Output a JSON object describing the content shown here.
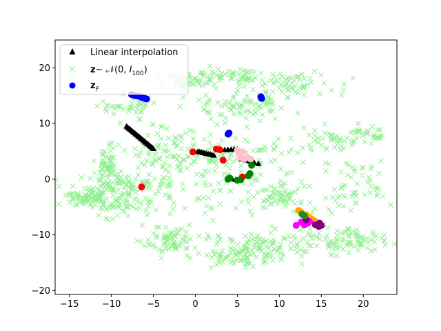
{
  "chart_data": {
    "type": "scatter",
    "title": "",
    "xlabel": "",
    "ylabel": "",
    "xlim": [
      -16.7,
      24.0
    ],
    "ylim": [
      -20.7,
      25.0
    ],
    "xticks": [
      -15,
      -10,
      -5,
      0,
      5,
      10,
      15,
      20
    ],
    "yticks": [
      -20,
      -10,
      0,
      10,
      20
    ],
    "grid": false,
    "legend_position": "top-left",
    "legend": [
      {
        "label": "Linear interpolation",
        "marker": "triangle",
        "color": "#000000"
      },
      {
        "label_prefix": "z",
        "label_rest": "∼ 𝒩(0, ",
        "label_I": "I",
        "label_sub": "100",
        "label_close": ")",
        "marker": "x",
        "color": "#90ee90"
      },
      {
        "label_prefix": "z",
        "label_sub": "F",
        "marker": "circle",
        "color": "#0000ff"
      }
    ],
    "background_clusters": [
      {
        "cx": -12.5,
        "cy": -3.0,
        "sx": 2.0,
        "sy": 1.0,
        "n": 90
      },
      {
        "cx": -10.5,
        "cy": 2.5,
        "sx": 0.7,
        "sy": 2.0,
        "n": 60
      },
      {
        "cx": -7.5,
        "cy": -1.0,
        "sx": 2.5,
        "sy": 1.0,
        "n": 80
      },
      {
        "cx": -9.0,
        "cy": -5.0,
        "sx": 2.0,
        "sy": 1.0,
        "n": 50
      },
      {
        "cx": -3.0,
        "cy": -11.0,
        "sx": 1.8,
        "sy": 1.2,
        "n": 70
      },
      {
        "cx": -1.0,
        "cy": 17.5,
        "sx": 2.0,
        "sy": 0.7,
        "n": 50
      },
      {
        "cx": 5.0,
        "cy": 18.5,
        "sx": 2.5,
        "sy": 0.8,
        "n": 60
      },
      {
        "cx": 5.5,
        "cy": 13.0,
        "sx": 3.0,
        "sy": 1.5,
        "n": 80
      },
      {
        "cx": 12.0,
        "cy": 17.0,
        "sx": 2.5,
        "sy": 1.2,
        "n": 60
      },
      {
        "cx": 20.5,
        "cy": 8.0,
        "sx": 1.2,
        "sy": 0.7,
        "n": 30
      },
      {
        "cx": 16.0,
        "cy": 7.5,
        "sx": 2.0,
        "sy": 1.0,
        "n": 40
      },
      {
        "cx": 17.5,
        "cy": -11.0,
        "sx": 2.5,
        "sy": 1.3,
        "n": 90
      },
      {
        "cx": 8.0,
        "cy": -12.0,
        "sx": 3.0,
        "sy": 1.2,
        "n": 90
      },
      {
        "cx": 5.0,
        "cy": -14.0,
        "sx": 2.5,
        "sy": 0.8,
        "n": 60
      },
      {
        "cx": 10.0,
        "cy": -3.0,
        "sx": 1.5,
        "sy": 1.5,
        "n": 50
      },
      {
        "cx": 19.0,
        "cy": -2.0,
        "sx": 2.0,
        "sy": 2.5,
        "n": 50
      },
      {
        "cx": 3.0,
        "cy": 5.0,
        "sx": 3.0,
        "sy": 1.5,
        "n": 70
      },
      {
        "cx": -4.0,
        "cy": 5.0,
        "sx": 2.0,
        "sy": 2.5,
        "n": 50
      },
      {
        "cx": -8.0,
        "cy": 13.0,
        "sx": 1.5,
        "sy": 1.0,
        "n": 40
      },
      {
        "cx": 4.0,
        "cy": 0.0,
        "sx": 6.0,
        "sy": 5.0,
        "n": 150
      }
    ],
    "interpolation_segments": [
      {
        "start": [
          -8.2,
          9.5
        ],
        "end": [
          -5.0,
          5.5
        ],
        "n": 22
      },
      {
        "start": [
          -6.5,
          15.0
        ],
        "end": [
          -6.0,
          14.6
        ],
        "n": 3
      },
      {
        "start": [
          0.3,
          5.0
        ],
        "end": [
          2.2,
          4.3
        ],
        "n": 10
      },
      {
        "start": [
          3.5,
          5.3
        ],
        "end": [
          5.0,
          5.4
        ],
        "n": 5
      },
      {
        "start": [
          5.5,
          3.6
        ],
        "end": [
          7.5,
          2.8
        ],
        "n": 5
      },
      {
        "start": [
          4.0,
          0.2
        ],
        "end": [
          5.2,
          -0.2
        ],
        "n": 4
      }
    ],
    "series": [
      {
        "name": "",
        "color": "#0000ff",
        "points": [
          [
            -7.6,
            15.2
          ],
          [
            -7.2,
            15.0
          ],
          [
            -6.8,
            14.9
          ],
          [
            -6.4,
            14.7
          ],
          [
            -6.0,
            14.5
          ],
          [
            -5.8,
            14.4
          ],
          [
            7.8,
            14.8
          ],
          [
            7.9,
            14.5
          ],
          [
            4.0,
            8.3
          ],
          [
            3.9,
            8.1
          ]
        ]
      },
      {
        "name": "",
        "color": "#ff0000",
        "points": [
          [
            -6.4,
            -1.4
          ],
          [
            -0.3,
            4.9
          ],
          [
            2.5,
            5.4
          ],
          [
            2.9,
            5.3
          ],
          [
            3.3,
            3.4
          ],
          [
            5.6,
            0.4
          ]
        ]
      },
      {
        "name": "",
        "color": "#ffc0cb",
        "points": [
          [
            5.0,
            5.2
          ],
          [
            5.2,
            4.4
          ],
          [
            5.4,
            3.9
          ],
          [
            5.8,
            3.6
          ],
          [
            6.2,
            3.9
          ],
          [
            6.6,
            3.6
          ],
          [
            5.6,
            4.9
          ]
        ]
      },
      {
        "name": "",
        "color": "#008000",
        "points": [
          [
            3.9,
            0.0
          ],
          [
            4.1,
            0.2
          ],
          [
            5.0,
            -0.2
          ],
          [
            5.4,
            -0.1
          ],
          [
            6.3,
            0.6
          ],
          [
            6.5,
            1.0
          ],
          [
            6.7,
            2.5
          ]
        ]
      },
      {
        "name": "",
        "color": "#ffa500",
        "points": [
          [
            12.3,
            -5.6
          ],
          [
            12.6,
            -5.9
          ],
          [
            13.2,
            -6.4
          ],
          [
            13.5,
            -6.8
          ],
          [
            13.8,
            -7.1
          ],
          [
            14.1,
            -7.4
          ],
          [
            14.4,
            -7.7
          ],
          [
            14.7,
            -8.0
          ]
        ]
      },
      {
        "name": "",
        "color": "#ff00ff",
        "points": [
          [
            12.0,
            -8.3
          ],
          [
            12.6,
            -7.7
          ],
          [
            13.0,
            -8.2
          ],
          [
            13.4,
            -7.9
          ],
          [
            13.6,
            -7.6
          ]
        ]
      },
      {
        "name": "",
        "color": "#800080",
        "points": [
          [
            14.3,
            -8.2
          ],
          [
            14.7,
            -8.5
          ],
          [
            15.0,
            -8.3
          ],
          [
            14.8,
            -7.9
          ],
          [
            13.2,
            -7.3
          ]
        ]
      },
      {
        "name": "",
        "color": "#228b22",
        "points": [
          [
            12.7,
            -6.3
          ],
          [
            13.0,
            -6.6
          ]
        ]
      }
    ]
  }
}
